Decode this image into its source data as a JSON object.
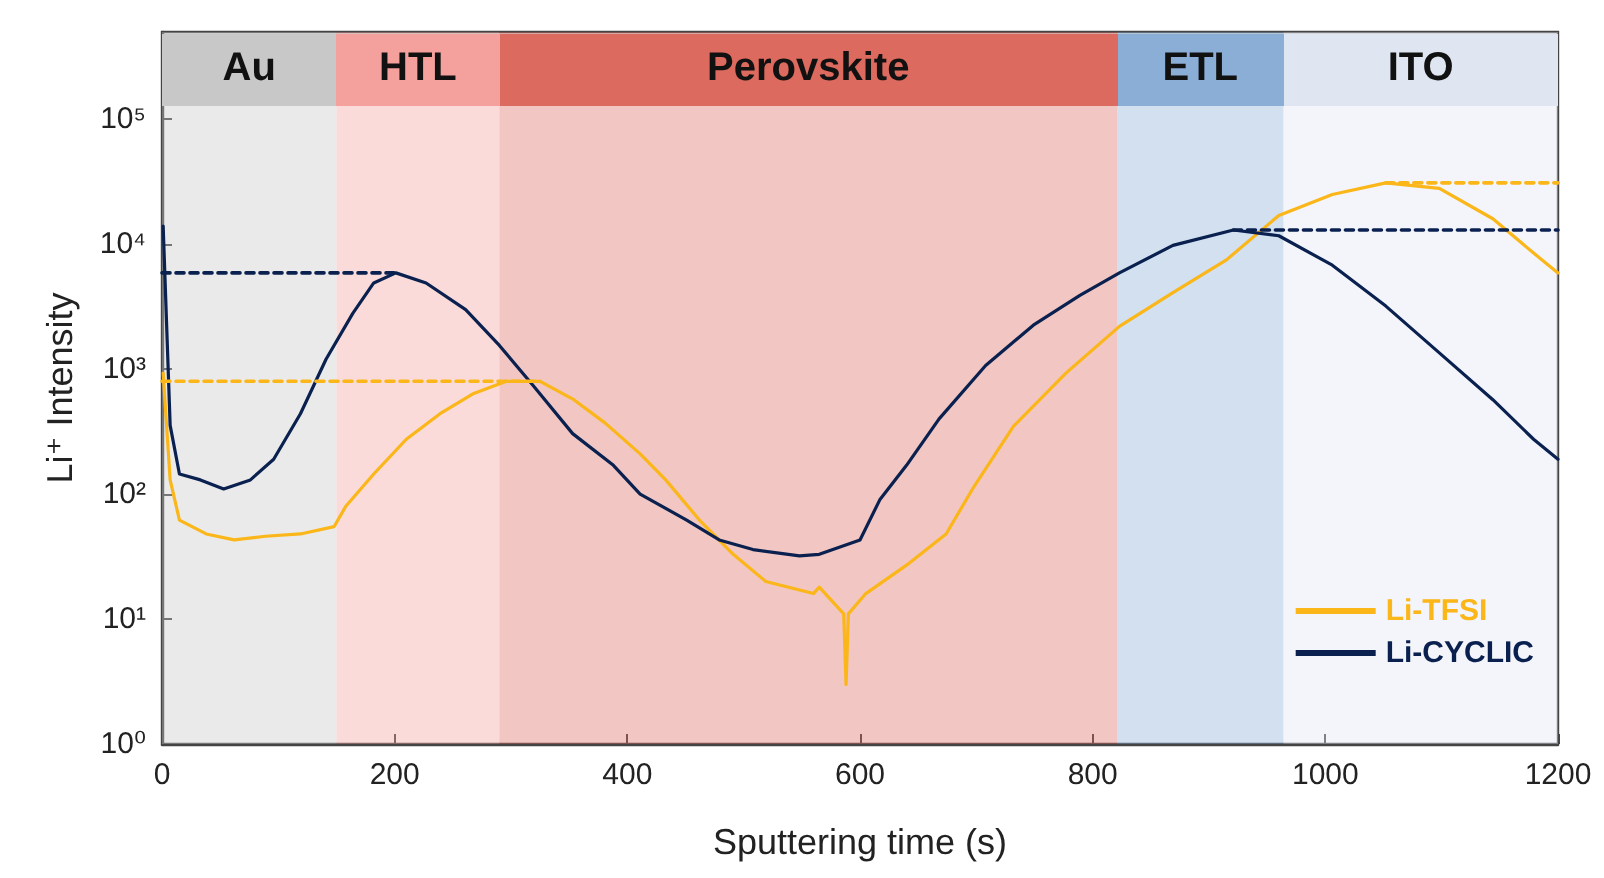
{
  "chart_data": {
    "type": "line",
    "xlabel": "Sputtering time (s)",
    "ylabel": "Li⁺ Intensity",
    "xlim": [
      0,
      1200
    ],
    "xticks": [
      0,
      200,
      400,
      600,
      800,
      1000,
      1200
    ],
    "ylim": [
      1,
      500000
    ],
    "log": "y",
    "yticks": [
      {
        "value": 1,
        "label": "10⁰"
      },
      {
        "value": 10,
        "label": "10¹"
      },
      {
        "value": 100,
        "label": "10²"
      },
      {
        "value": 1000,
        "label": "10³"
      },
      {
        "value": 10000,
        "label": "10⁴"
      },
      {
        "value": 100000,
        "label": "10⁵"
      }
    ],
    "grid": false,
    "legend": "bottom right",
    "marker": "none",
    "bands": [
      {
        "axis": "x",
        "from": 0,
        "to": 150,
        "label": "Au",
        "color": "#c8c8c8"
      },
      {
        "axis": "x",
        "from": 150,
        "to": 290,
        "label": "HTL",
        "color": "#f4a09c"
      },
      {
        "axis": "x",
        "from": 290,
        "to": 821,
        "label": "Perovskite",
        "color": "#dd6a5e"
      },
      {
        "axis": "x",
        "from": 821,
        "to": 964,
        "label": "ETL",
        "color": "#8aaed6"
      },
      {
        "axis": "x",
        "from": 964,
        "to": 1200,
        "label": "ITO",
        "color": "#dfe6f1"
      }
    ],
    "series": [
      {
        "name": "Li-TFSI",
        "color": "#fbb619",
        "x": [
          1,
          7,
          15,
          38,
          62,
          89,
          119,
          148,
          158,
          182,
          210,
          239,
          268,
          296,
          325,
          354,
          381,
          411,
          433,
          462,
          491,
          519,
          560,
          565,
          586,
          588,
          590,
          605,
          640,
          674,
          698,
          732,
          777,
          823,
          869,
          915,
          960,
          1006,
          1052,
          1098,
          1144,
          1179,
          1200
        ],
        "values": [
          930,
          130,
          62,
          48,
          43,
          46,
          48,
          55,
          80,
          145,
          275,
          440,
          640,
          800,
          800,
          570,
          370,
          210,
          130,
          62,
          33,
          20,
          16,
          18,
          11,
          3,
          11,
          16,
          27,
          48,
          115,
          350,
          930,
          2200,
          4100,
          7500,
          17000,
          25000,
          31000,
          28000,
          16000,
          8500,
          5900
        ]
      },
      {
        "name": "Li-CYCLIC",
        "color": "#0a2150",
        "x": [
          1,
          7,
          15,
          33,
          53,
          76,
          96,
          119,
          141,
          164,
          182,
          201,
          227,
          261,
          290,
          319,
          353,
          388,
          411,
          451,
          479,
          508,
          548,
          565,
          600,
          617,
          640,
          668,
          708,
          749,
          789,
          823,
          869,
          921,
          960,
          1006,
          1052,
          1098,
          1144,
          1179,
          1200
        ],
        "values": [
          14000,
          355,
          145,
          130,
          110,
          130,
          190,
          440,
          1200,
          2800,
          4900,
          5900,
          4900,
          3000,
          1550,
          740,
          305,
          170,
          100,
          62,
          43,
          36,
          32,
          33,
          43,
          90,
          170,
          400,
          1070,
          2250,
          3900,
          5900,
          9800,
          13000,
          11700,
          6800,
          3200,
          1350,
          570,
          275,
          190
        ]
      },
      {
        "type": "line",
        "line_style": "dashed",
        "color": "#fbb619",
        "x": [
          0,
          325
        ],
        "values": [
          800,
          800
        ]
      },
      {
        "type": "line",
        "line_style": "dashed",
        "color": "#0a2150",
        "x": [
          0,
          201
        ],
        "values": [
          5900,
          5900
        ]
      },
      {
        "type": "line",
        "line_style": "dashed",
        "color": "#0a2150",
        "x": [
          921,
          1200
        ],
        "values": [
          13000,
          13000
        ]
      },
      {
        "type": "line",
        "line_style": "dashed",
        "color": "#fbb619",
        "x": [
          1052,
          1200
        ],
        "values": [
          31000,
          31000
        ]
      }
    ]
  }
}
